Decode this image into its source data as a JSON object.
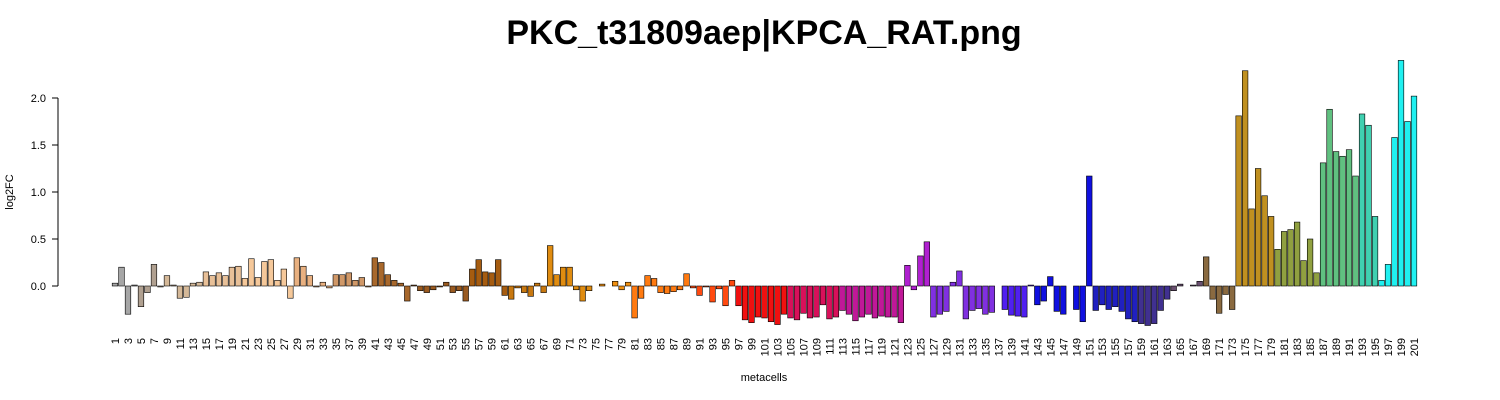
{
  "chart_data": {
    "type": "bar",
    "title": "PKC_t31809aep|KPCA_RAT.png",
    "x_label": "metacells",
    "y_label": "log2FC",
    "categories": [
      1,
      null,
      3,
      null,
      5,
      null,
      7,
      null,
      9,
      null,
      11,
      null,
      13,
      null,
      15,
      null,
      17,
      null,
      19,
      null,
      21,
      null,
      23,
      null,
      25,
      null,
      27,
      null,
      29,
      null,
      31,
      null,
      33,
      null,
      35,
      null,
      37,
      null,
      39,
      null,
      41,
      null,
      43,
      null,
      45,
      null,
      47,
      null,
      49,
      null,
      51,
      null,
      53,
      null,
      55,
      null,
      57,
      null,
      59,
      null,
      61,
      null,
      63,
      null,
      65,
      null,
      67,
      null,
      69,
      null,
      71,
      null,
      73,
      null,
      75,
      null,
      77,
      null,
      79,
      null,
      81,
      null,
      83,
      null,
      85,
      null,
      87,
      null,
      89,
      null,
      91,
      null,
      93,
      null,
      95,
      null,
      97,
      null,
      99,
      null,
      101,
      null,
      103,
      null,
      105,
      null,
      107,
      null,
      109,
      null,
      111,
      null,
      113,
      null,
      115,
      null,
      117,
      null,
      119,
      null,
      121,
      null,
      123,
      null,
      125,
      null,
      127,
      null,
      129,
      null,
      131,
      null,
      133,
      null,
      135,
      null,
      137,
      null,
      139,
      null,
      141,
      null,
      143,
      null,
      145,
      null,
      147,
      null,
      149,
      null,
      151,
      null,
      153,
      null,
      155,
      null,
      157,
      null,
      159,
      null,
      161,
      null,
      163,
      null,
      165,
      null,
      167,
      null,
      169,
      null,
      171,
      null,
      173,
      null,
      175,
      null,
      177,
      null,
      179,
      null,
      181,
      null,
      183,
      null,
      185,
      null,
      187,
      null,
      189,
      null,
      191,
      null,
      193,
      null,
      195,
      null,
      197,
      null,
      199,
      null,
      201
    ],
    "values": [
      0.03,
      0.2,
      -0.3,
      0.01,
      -0.22,
      -0.07,
      0.23,
      -0.01,
      0.11,
      0.01,
      -0.13,
      -0.12,
      0.03,
      0.04,
      0.15,
      0.11,
      0.14,
      0.11,
      0.2,
      0.21,
      0.08,
      0.29,
      0.09,
      0.26,
      0.28,
      0.06,
      0.18,
      -0.13,
      0.3,
      0.21,
      0.11,
      -0.01,
      0.04,
      -0.02,
      0.12,
      0.12,
      0.14,
      0.06,
      0.09,
      -0.01,
      0.3,
      0.25,
      0.12,
      0.06,
      0.03,
      -0.16,
      0.01,
      -0.05,
      -0.07,
      -0.04,
      -0.01,
      0.04,
      -0.07,
      -0.05,
      -0.16,
      0.18,
      0.28,
      0.15,
      0.14,
      0.28,
      -0.1,
      -0.14,
      -0.02,
      -0.07,
      -0.11,
      0.03,
      -0.07,
      0.43,
      0.12,
      0.2,
      0.2,
      -0.04,
      -0.16,
      -0.05,
      0,
      0.02,
      0,
      0.05,
      -0.04,
      0.04,
      -0.34,
      -0.13,
      0.11,
      0.08,
      -0.07,
      -0.08,
      -0.06,
      -0.04,
      0.13,
      -0.02,
      -0.1,
      -0.01,
      -0.17,
      -0.03,
      -0.21,
      0.06,
      -0.21,
      -0.36,
      -0.39,
      -0.33,
      -0.34,
      -0.38,
      -0.41,
      -0.3,
      -0.34,
      -0.36,
      -0.29,
      -0.34,
      -0.33,
      -0.2,
      -0.35,
      -0.33,
      -0.26,
      -0.3,
      -0.37,
      -0.33,
      -0.3,
      -0.34,
      -0.32,
      -0.33,
      -0.33,
      -0.39,
      0.22,
      -0.04,
      0.32,
      0.47,
      -0.33,
      -0.3,
      -0.27,
      0.04,
      0.16,
      -0.35,
      -0.26,
      -0.24,
      -0.3,
      -0.28,
      0,
      -0.25,
      -0.31,
      -0.32,
      -0.33,
      0.01,
      -0.2,
      -0.16,
      0.1,
      -0.27,
      -0.3,
      0,
      -0.25,
      -0.38,
      1.17,
      -0.26,
      -0.2,
      -0.25,
      -0.22,
      -0.27,
      -0.35,
      -0.38,
      -0.4,
      -0.42,
      -0.4,
      -0.26,
      -0.14,
      -0.05,
      0.02,
      0,
      0.01,
      0.05,
      0.31,
      -0.14,
      -0.29,
      -0.09,
      -0.25,
      1.81,
      2.29,
      0.82,
      1.25,
      0.96,
      0.74,
      0.39,
      0.58,
      0.6,
      0.68,
      0.27,
      0.5,
      0.14,
      1.31,
      1.88,
      1.43,
      1.38,
      1.45,
      1.17,
      1.83,
      1.71,
      0.74,
      0.06,
      0.23,
      1.58,
      2.4,
      1.75,
      2.02
    ],
    "colors": [
      "#a6a6a6",
      "#a6a6a6",
      "#a6a6a6",
      "#a6a6a6",
      "#b0a090",
      "#b0a090",
      "#b0a090",
      "#b0a090",
      "#d4b898",
      "#d4b898",
      "#d4b898",
      "#d4b898",
      "#d4b898",
      "#d4b898",
      "#e8c098",
      "#e8c098",
      "#e8c098",
      "#e8c098",
      "#e8c098",
      "#e8c098",
      "#f5c89a",
      "#f5c89a",
      "#f5c89a",
      "#f5c89a",
      "#f5c89a",
      "#f5c89a",
      "#f5c89a",
      "#f5c89a",
      "#e8b080",
      "#e8b080",
      "#e8b080",
      "#e8b080",
      "#e8b080",
      "#e8b080",
      "#d09868",
      "#d09868",
      "#d09868",
      "#d09868",
      "#d09868",
      "#d09868",
      "#a8682c",
      "#a8682c",
      "#a8682c",
      "#a8682c",
      "#a8682c",
      "#a8682c",
      "#9a5a20",
      "#9a5a20",
      "#9a5a20",
      "#9a5a20",
      "#9a5a20",
      "#9a5a20",
      "#9a5a20",
      "#9a5a20",
      "#9a5a20",
      "#a65c10",
      "#a65c10",
      "#a65c10",
      "#a65c10",
      "#a65c10",
      "#a65c10",
      "#c87810",
      "#c87810",
      "#c87810",
      "#c87810",
      "#c87810",
      "#c87810",
      "#e08c10",
      "#e08c10",
      "#e08c10",
      "#e08c10",
      "#e08c10",
      "#e08c10",
      "#e08c10",
      "#f09010",
      "#f09010",
      "#f09010",
      "#f09010",
      "#f09010",
      "#f09010",
      "#ff7a10",
      "#ff7a10",
      "#ff7a10",
      "#ff7a10",
      "#ff7a10",
      "#ff7a10",
      "#ff7a10",
      "#ff7a10",
      "#ff7a10",
      "#ff4a10",
      "#ff4a10",
      "#ff4a10",
      "#ff4a10",
      "#ff4a10",
      "#ff4a10",
      "#ff4a10",
      "#f01010",
      "#f01010",
      "#f01010",
      "#f01010",
      "#f01010",
      "#f01010",
      "#f01010",
      "#f01010",
      "#d8105a",
      "#d8105a",
      "#d8105a",
      "#d8105a",
      "#d8105a",
      "#d8105a",
      "#d8105a",
      "#d8105a",
      "#c01898",
      "#c01898",
      "#c01898",
      "#c01898",
      "#c01898",
      "#c01898",
      "#c01898",
      "#c01898",
      "#c01898",
      "#c01898",
      "#b020d0",
      "#b020d0",
      "#b020d0",
      "#b020d0",
      "#8030e0",
      "#8030e0",
      "#8030e0",
      "#8030e0",
      "#8030e0",
      "#8030e0",
      "#8030e0",
      "#8030e0",
      "#8030e0",
      "#8030e0",
      "#5020f0",
      "#5020f0",
      "#5020f0",
      "#5020f0",
      "#5020f0",
      "#5020f0",
      "#1010e0",
      "#1010e0",
      "#1010e0",
      "#1010e0",
      "#1010e0",
      "#1010e0",
      "#1010e0",
      "#1010e0",
      "#1010e0",
      "#2020c0",
      "#2020c0",
      "#2020c0",
      "#2020c0",
      "#2020c0",
      "#2020c0",
      "#2020c0",
      "#403090",
      "#403090",
      "#403090",
      "#403090",
      "#403090",
      "#6a5070",
      "#6a5070",
      "#6a5070",
      "#6a5070",
      "#6a5070",
      "#8a6a40",
      "#8a6a40",
      "#8a6a40",
      "#8a6a40",
      "#8a6a40",
      "#c09020",
      "#c09020",
      "#c09020",
      "#c09020",
      "#c09020",
      "#c09020",
      "#90a040",
      "#90a040",
      "#90a040",
      "#90a040",
      "#90a040",
      "#90a040",
      "#90a040",
      "#60c080",
      "#60c080",
      "#60c080",
      "#60c080",
      "#60c080",
      "#60c080",
      "#40d0b0",
      "#40d0b0",
      "#40d0b0",
      "#20f0f0",
      "#20f0f0",
      "#20f0f0",
      "#20f0f0",
      "#20f0f0",
      "#20f0f0"
    ],
    "ylim": [
      -0.45,
      2.45
    ],
    "yticks": [
      {
        "value": 0,
        "label": "0.0"
      },
      {
        "value": 0.5,
        "label": "0.5"
      },
      {
        "value": 1,
        "label": "1.0"
      },
      {
        "value": 1.5,
        "label": "1.5"
      },
      {
        "value": 2,
        "label": "2.0"
      }
    ]
  }
}
